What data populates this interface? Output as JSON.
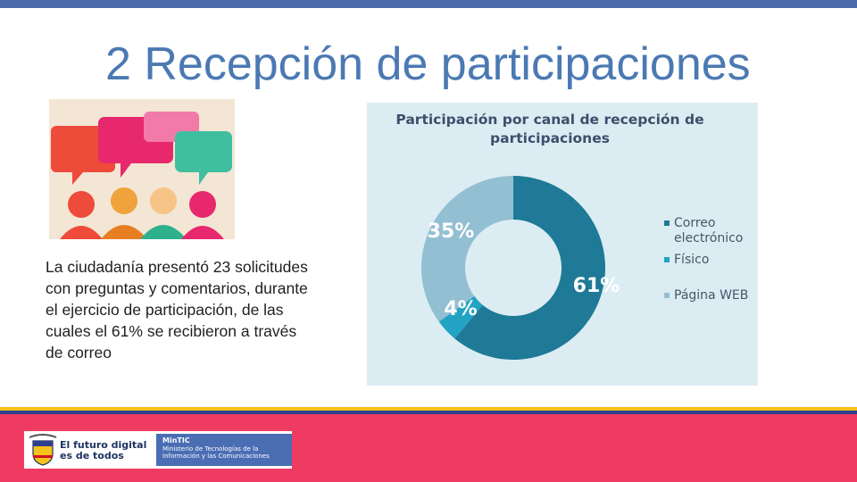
{
  "slide": {
    "title": "2 Recepción de participaciones",
    "body_text": "La ciudadanía presentó 23 solicitudes con preguntas y comentarios, durante el ejercicio de participación, de las cuales el 61% se recibieron a través de correo"
  },
  "colors": {
    "top_bar": "#4a6aa8",
    "title": "#4b79b3",
    "footer": "#ef3b62",
    "correo": "#1e7a96",
    "fisico": "#22a3c4",
    "pagina_web": "#93bfd2"
  },
  "chart_data": {
    "type": "pie",
    "variant": "donut",
    "title": "Participación por canal de recepción de participaciones",
    "labels": [
      "Correo electrónico",
      "Físico",
      "Página WEB"
    ],
    "values": [
      61,
      4,
      35
    ],
    "value_labels": [
      "61%",
      "4%",
      "35%"
    ],
    "legend_position": "right"
  },
  "footer": {
    "logo_line1": "El futuro digital",
    "logo_line2": "es de todos",
    "badge_line1": "MinTIC",
    "badge_line2": "Ministerio de Tecnologías de la",
    "badge_line3": "Información y las Comunicaciones"
  },
  "icons": {
    "illustration": "people-speech-bubbles-illustration",
    "crest": "colombia-coat-of-arms-icon"
  }
}
